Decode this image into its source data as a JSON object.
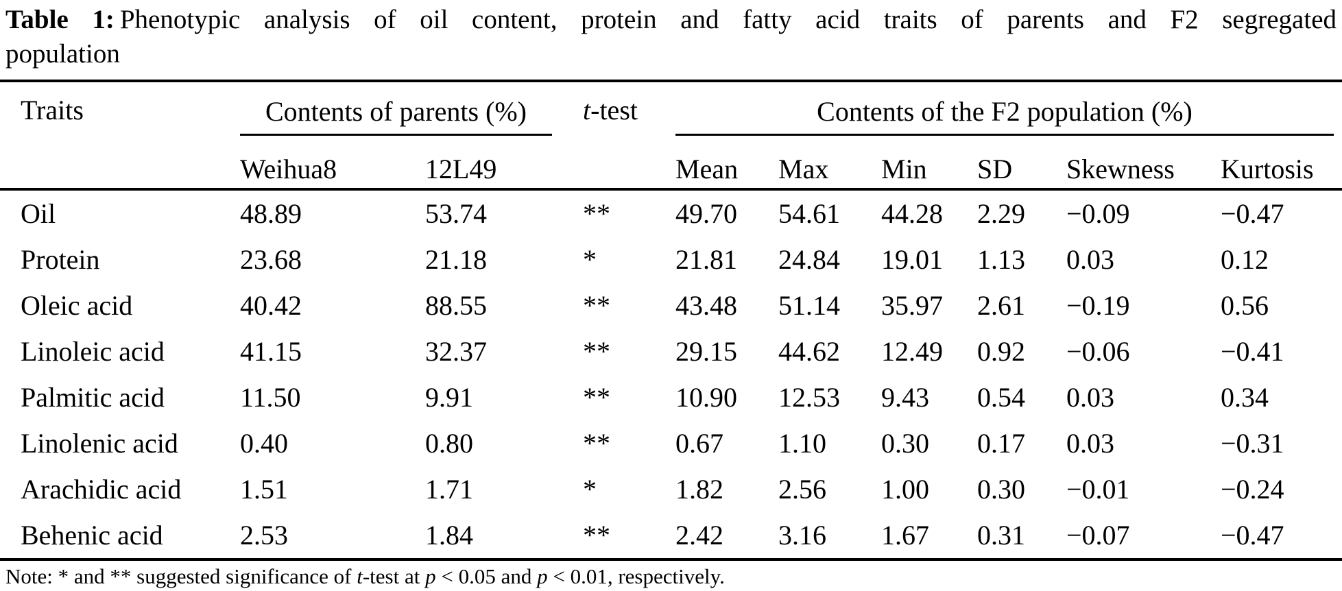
{
  "caption": {
    "label": "Table 1:",
    "line1": "Phenotypic analysis of oil content, protein and fatty acid traits of parents and F2 segregated",
    "line2": "population"
  },
  "header": {
    "traits": "Traits",
    "parents_group": "Contents of parents (%)",
    "t_test": {
      "t_italic": "t",
      "rest": "-test"
    },
    "f2_group": "Contents of the F2 population (%)",
    "parent_cols": [
      "Weihua8",
      "12L49"
    ],
    "f2_cols": [
      "Mean",
      "Max",
      "Min",
      "SD",
      "Skewness",
      "Kurtosis"
    ]
  },
  "rows": [
    {
      "trait": "Oil",
      "weihua8": "48.89",
      "12l49": "53.74",
      "t_test": "**",
      "mean": "49.70",
      "max": "54.61",
      "min": "44.28",
      "sd": "2.29",
      "skewness": "−0.09",
      "kurtosis": "−0.47"
    },
    {
      "trait": "Protein",
      "weihua8": "23.68",
      "12l49": "21.18",
      "t_test": "*",
      "mean": "21.81",
      "max": "24.84",
      "min": "19.01",
      "sd": "1.13",
      "skewness": "0.03",
      "kurtosis": "0.12"
    },
    {
      "trait": "Oleic acid",
      "weihua8": "40.42",
      "12l49": "88.55",
      "t_test": "**",
      "mean": "43.48",
      "max": "51.14",
      "min": "35.97",
      "sd": "2.61",
      "skewness": "−0.19",
      "kurtosis": "0.56"
    },
    {
      "trait": "Linoleic acid",
      "weihua8": "41.15",
      "12l49": "32.37",
      "t_test": "**",
      "mean": "29.15",
      "max": "44.62",
      "min": "12.49",
      "sd": "0.92",
      "skewness": "−0.06",
      "kurtosis": "−0.41"
    },
    {
      "trait": "Palmitic acid",
      "weihua8": "11.50",
      "12l49": "9.91",
      "t_test": "**",
      "mean": "10.90",
      "max": "12.53",
      "min": "9.43",
      "sd": "0.54",
      "skewness": "0.03",
      "kurtosis": "0.34"
    },
    {
      "trait": "Linolenic acid",
      "weihua8": "0.40",
      "12l49": "0.80",
      "t_test": "**",
      "mean": "0.67",
      "max": "1.10",
      "min": "0.30",
      "sd": "0.17",
      "skewness": "0.03",
      "kurtosis": "−0.31"
    },
    {
      "trait": "Arachidic acid",
      "weihua8": "1.51",
      "12l49": "1.71",
      "t_test": "*",
      "mean": "1.82",
      "max": "2.56",
      "min": "1.00",
      "sd": "0.30",
      "skewness": "−0.01",
      "kurtosis": "−0.24"
    },
    {
      "trait": "Behenic acid",
      "weihua8": "2.53",
      "12l49": "1.84",
      "t_test": "**",
      "mean": "2.42",
      "max": "3.16",
      "min": "1.67",
      "sd": "0.31",
      "skewness": "−0.07",
      "kurtosis": "−0.47"
    }
  ],
  "note": {
    "prefix": "Note: * and ** suggested significance of ",
    "t_italic": "t",
    "mid1": "-test at ",
    "p1_italic": "p",
    "mid2": " < 0.05 and ",
    "p2_italic": "p",
    "suffix": " < 0.01, respectively."
  },
  "colors": {
    "text": "#000000",
    "background": "#ffffff",
    "rule": "#000000"
  }
}
